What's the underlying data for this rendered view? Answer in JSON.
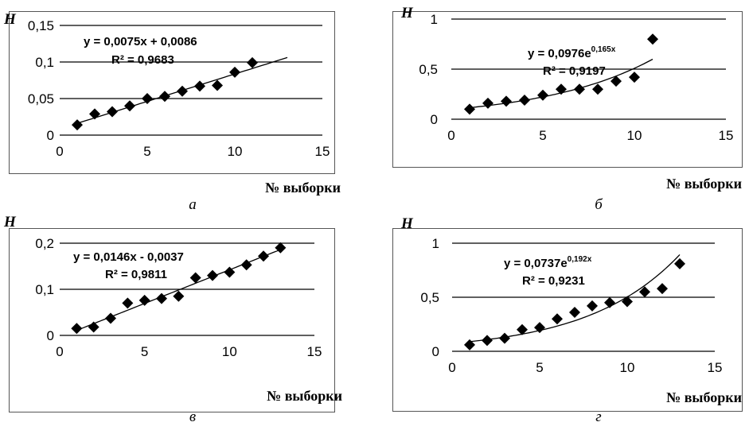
{
  "chart_data": [
    {
      "type": "scatter",
      "panel_caption": "а",
      "ylabel": "H",
      "xlabel": "№ выборки",
      "xlim": [
        0,
        15
      ],
      "ylim": [
        0,
        0.15
      ],
      "xticks": [
        "0",
        "5",
        "10",
        "15"
      ],
      "yticks": [
        "0",
        "0,05",
        "0,1",
        "0,15"
      ],
      "ytick_values": [
        0,
        0.05,
        0.1,
        0.15
      ],
      "grid": "horizontal",
      "x": [
        1,
        2,
        3,
        4,
        5,
        6,
        7,
        8,
        9,
        10,
        11
      ],
      "y": [
        0.014,
        0.029,
        0.032,
        0.04,
        0.05,
        0.053,
        0.06,
        0.067,
        0.068,
        0.086,
        0.099
      ],
      "trendline": {
        "kind": "linear",
        "a": 0.0075,
        "b": 0.0086,
        "x_range": [
          1,
          13
        ]
      },
      "equation": "y = 0,0075x + 0,0086",
      "r2": "R² = 0,9683"
    },
    {
      "type": "scatter",
      "panel_caption": "б",
      "ylabel": "H",
      "xlabel": "№ выборки",
      "xlim": [
        0,
        15
      ],
      "ylim": [
        0,
        1
      ],
      "xticks": [
        "0",
        "5",
        "10",
        "15"
      ],
      "yticks": [
        "0",
        "0,5",
        "1"
      ],
      "ytick_values": [
        0,
        0.5,
        1
      ],
      "grid": "horizontal",
      "x": [
        1,
        2,
        3,
        4,
        5,
        6,
        7,
        8,
        9,
        10,
        11
      ],
      "y": [
        0.1,
        0.16,
        0.18,
        0.19,
        0.24,
        0.3,
        0.3,
        0.3,
        0.38,
        0.42,
        0.8
      ],
      "trendline": {
        "kind": "exponential",
        "a": 0.0976,
        "b": 0.165,
        "x_range": [
          1,
          11
        ]
      },
      "equation_base": "y = 0,0976e",
      "equation_exp": "0,165x",
      "r2": "R² = 0,9197"
    },
    {
      "type": "scatter",
      "panel_caption": "в",
      "ylabel": "H",
      "xlabel": "№ выборки",
      "xlim": [
        0,
        15
      ],
      "ylim": [
        0,
        0.2
      ],
      "xticks": [
        "0",
        "5",
        "10",
        "15"
      ],
      "yticks": [
        "0",
        "0,1",
        "0,2"
      ],
      "ytick_values": [
        0,
        0.1,
        0.2
      ],
      "grid": "horizontal",
      "x": [
        1,
        2,
        3,
        4,
        5,
        6,
        7,
        8,
        9,
        10,
        11,
        12,
        13
      ],
      "y": [
        0.015,
        0.018,
        0.037,
        0.07,
        0.076,
        0.08,
        0.085,
        0.125,
        0.13,
        0.137,
        0.153,
        0.172,
        0.19
      ],
      "trendline": {
        "kind": "linear",
        "a": 0.0146,
        "b": -0.0037,
        "x_range": [
          1,
          13
        ]
      },
      "equation": "y = 0,0146x - 0,0037",
      "r2": "R² = 0,9811"
    },
    {
      "type": "scatter",
      "panel_caption": "г",
      "ylabel": "H",
      "xlabel": "№ выборки",
      "xlim": [
        0,
        15
      ],
      "ylim": [
        0,
        1
      ],
      "xticks": [
        "0",
        "5",
        "10",
        "15"
      ],
      "yticks": [
        "0",
        "0,5",
        "1"
      ],
      "ytick_values": [
        0,
        0.5,
        1
      ],
      "grid": "horizontal",
      "x": [
        1,
        2,
        3,
        4,
        5,
        6,
        7,
        8,
        9,
        10,
        11,
        12,
        13
      ],
      "y": [
        0.06,
        0.1,
        0.12,
        0.2,
        0.22,
        0.3,
        0.36,
        0.42,
        0.45,
        0.46,
        0.55,
        0.58,
        0.81
      ],
      "trendline": {
        "kind": "exponential",
        "a": 0.0737,
        "b": 0.192,
        "x_range": [
          1,
          13
        ]
      },
      "equation_base": "y = 0,0737e",
      "equation_exp": "0,192x",
      "r2": "R² = 0,9231"
    }
  ]
}
